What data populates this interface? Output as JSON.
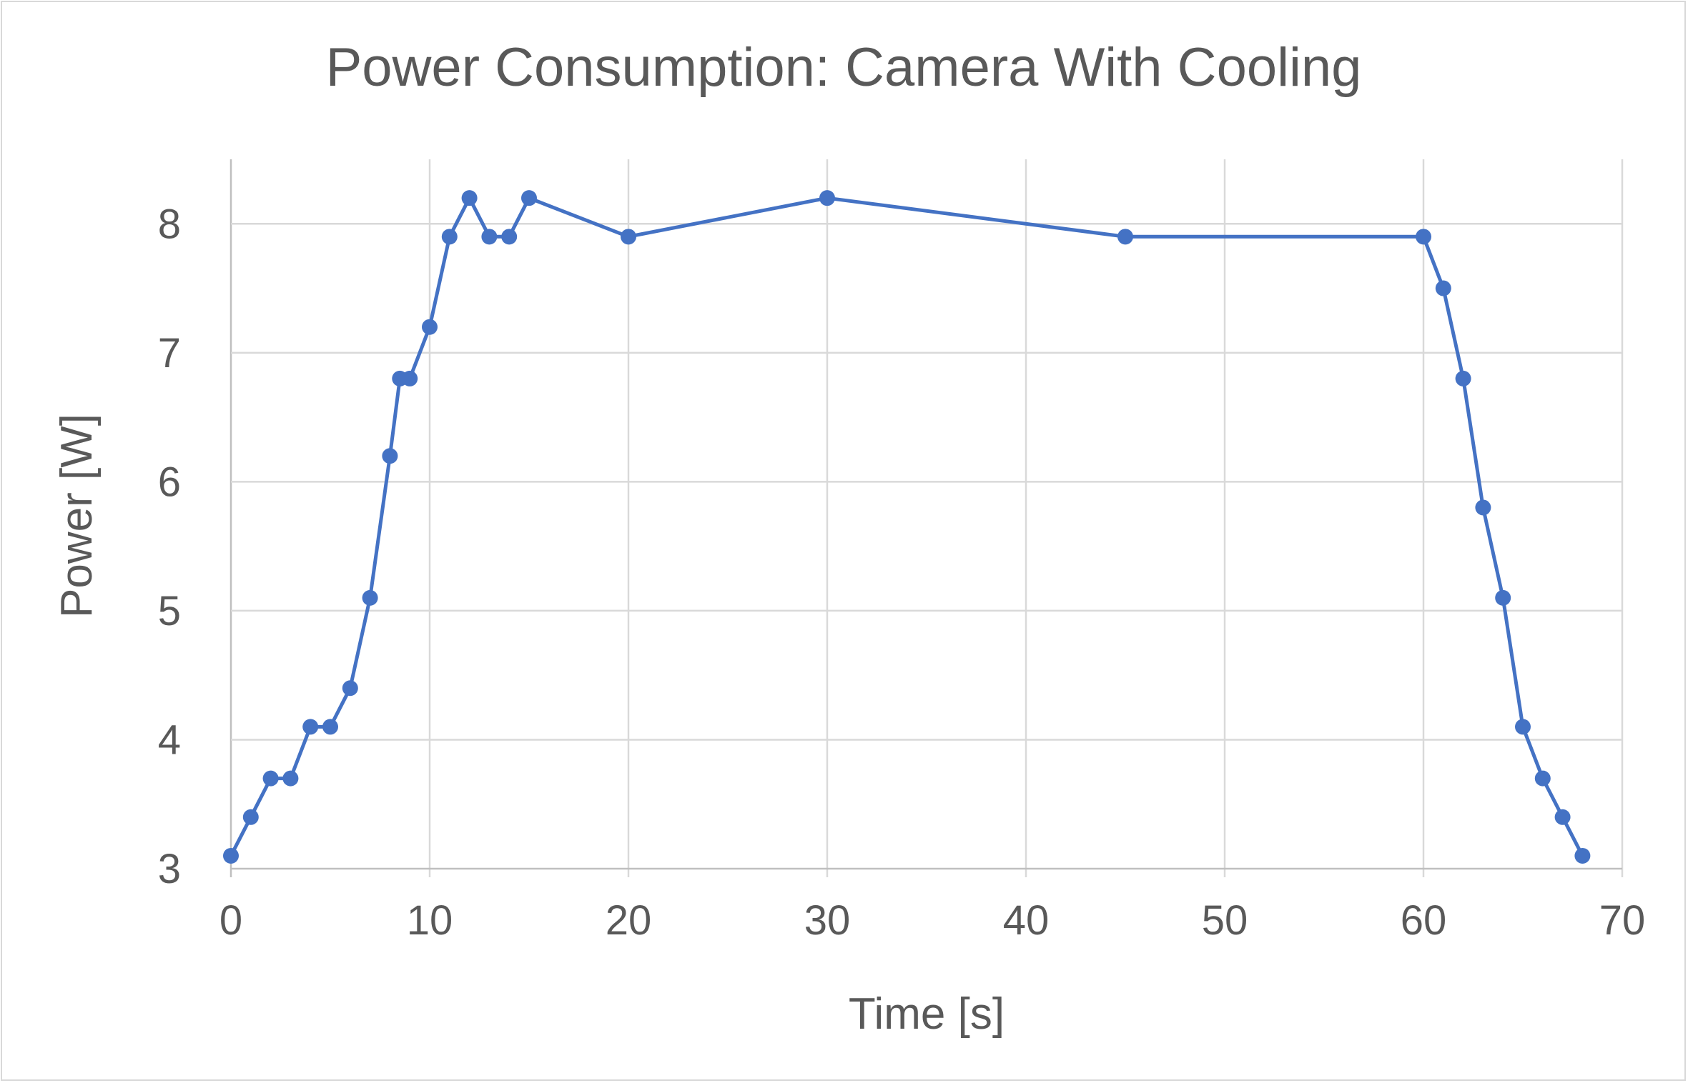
{
  "chart_data": {
    "type": "line",
    "title": "Power Consumption: Camera With Cooling",
    "xlabel": "Time [s]",
    "ylabel": "Power [W]",
    "xlim": [
      0,
      70
    ],
    "ylim": [
      3,
      8.5
    ],
    "xticks": [
      0,
      10,
      20,
      30,
      40,
      50,
      60,
      70
    ],
    "yticks": [
      3,
      4,
      5,
      6,
      7,
      8
    ],
    "grid": true,
    "legend": "none",
    "series": [
      {
        "color": "#4472c4",
        "marker": "circle",
        "points": [
          {
            "x": 0,
            "y": 3.1
          },
          {
            "x": 1,
            "y": 3.4
          },
          {
            "x": 2,
            "y": 3.7
          },
          {
            "x": 3,
            "y": 3.7
          },
          {
            "x": 4,
            "y": 4.1
          },
          {
            "x": 5,
            "y": 4.1
          },
          {
            "x": 6,
            "y": 4.4
          },
          {
            "x": 7,
            "y": 5.1
          },
          {
            "x": 8,
            "y": 6.2
          },
          {
            "x": 8.5,
            "y": 6.8
          },
          {
            "x": 9,
            "y": 6.8
          },
          {
            "x": 10,
            "y": 7.2
          },
          {
            "x": 11,
            "y": 7.9
          },
          {
            "x": 12,
            "y": 8.2
          },
          {
            "x": 13,
            "y": 7.9
          },
          {
            "x": 14,
            "y": 7.9
          },
          {
            "x": 15,
            "y": 8.2
          },
          {
            "x": 20,
            "y": 7.9
          },
          {
            "x": 30,
            "y": 8.2
          },
          {
            "x": 45,
            "y": 7.9
          },
          {
            "x": 60,
            "y": 7.9
          },
          {
            "x": 61,
            "y": 7.5
          },
          {
            "x": 62,
            "y": 6.8
          },
          {
            "x": 63,
            "y": 5.8
          },
          {
            "x": 64,
            "y": 5.1
          },
          {
            "x": 65,
            "y": 4.1
          },
          {
            "x": 66,
            "y": 3.7
          },
          {
            "x": 67,
            "y": 3.4
          },
          {
            "x": 68,
            "y": 3.1
          }
        ]
      }
    ]
  }
}
